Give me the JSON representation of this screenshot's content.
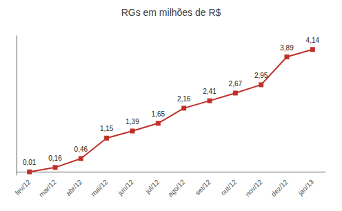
{
  "chart_data": {
    "type": "line",
    "title": "RGs em milhões de R$",
    "categories": [
      "fev/12",
      "mar/12",
      "abr/12",
      "mai/12",
      "jun/12",
      "jul/12",
      "ago/12",
      "set/12",
      "out/12",
      "nov/12",
      "dez/12",
      "jan/13"
    ],
    "values": [
      0.01,
      0.16,
      0.46,
      1.15,
      1.39,
      1.65,
      2.16,
      2.41,
      2.67,
      2.95,
      3.89,
      4.14
    ],
    "value_labels": [
      "0,01",
      "0,16",
      "0,46",
      "1,15",
      "1,39",
      "1,65",
      "2,16",
      "2,41",
      "2,67",
      "2,95",
      "3,89",
      "4,14"
    ],
    "color": "#C0302A",
    "marker": "square",
    "ylim": [
      -0.1,
      4.6
    ],
    "grid": false,
    "data_labels": true,
    "tick_labels": "x"
  }
}
